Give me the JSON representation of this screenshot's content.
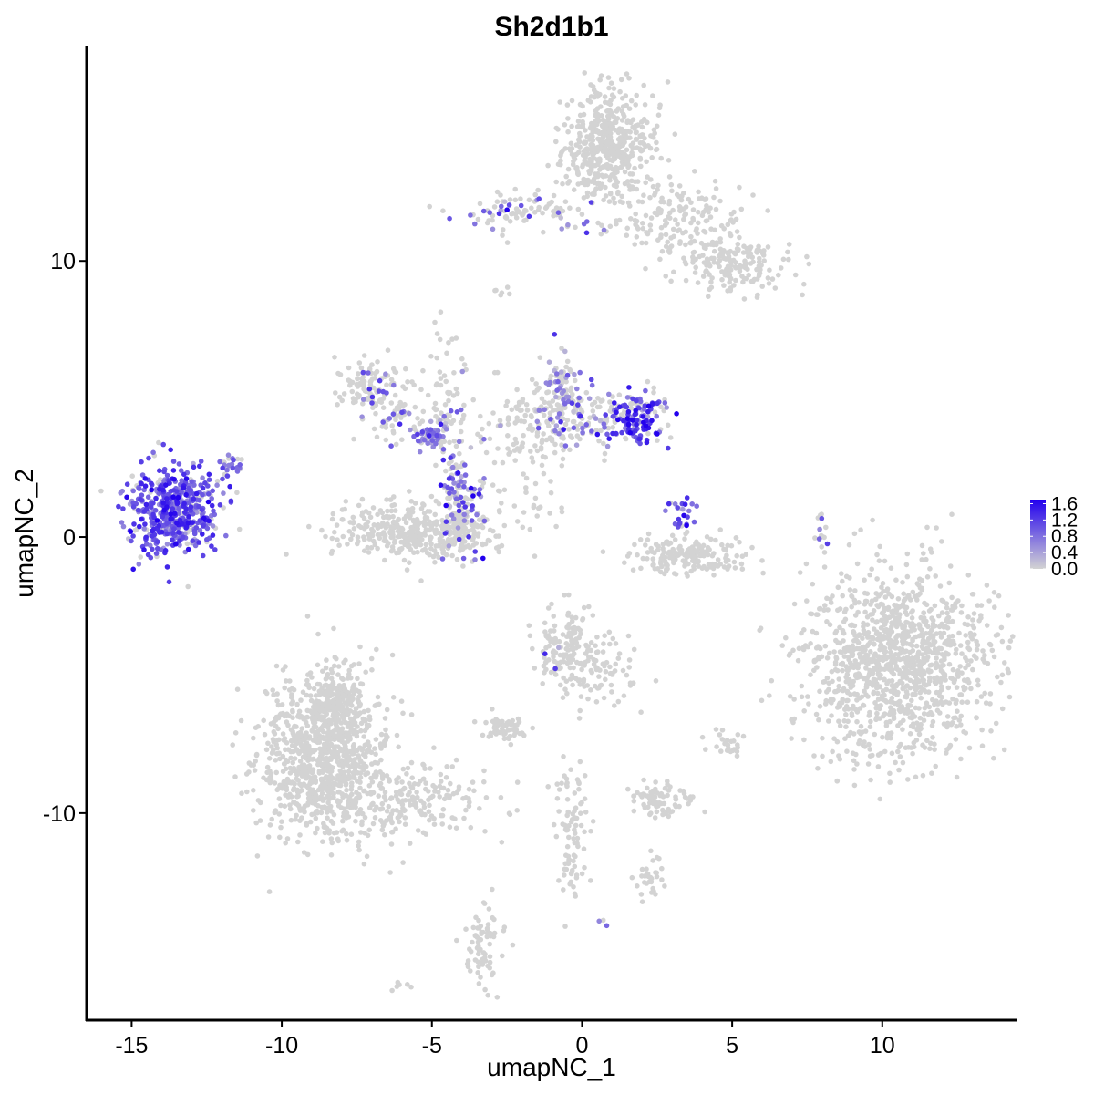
{
  "chart_data": {
    "type": "scatter",
    "title": "Sh2d1b1",
    "xlabel": "umapNC_1",
    "ylabel": "umapNC_2",
    "xlim": [
      -16.5,
      14.5
    ],
    "ylim": [
      -17.5,
      17.8
    ],
    "x_ticks": [
      -15,
      -10,
      -5,
      0,
      5,
      10
    ],
    "y_ticks": [
      -10,
      0,
      10
    ],
    "x_tick_labels": [
      "-15",
      "-10",
      "-5",
      "0",
      "5",
      "10"
    ],
    "y_tick_labels": [
      "-10",
      "0",
      "10"
    ],
    "colorscale": {
      "low_color": "#d3d3d3",
      "high_color": "#2200ee",
      "min": 0.0,
      "max": 1.7,
      "ticks": [
        0.0,
        0.4,
        0.8,
        1.2,
        1.6
      ],
      "tick_labels": [
        "0.0",
        "0.4",
        "0.8",
        "1.2",
        "1.6"
      ]
    },
    "clusters": [
      {
        "cx": -13.6,
        "cy": 1.0,
        "sx": 0.75,
        "sy": 0.8,
        "n": 520,
        "expr": 1.0,
        "p_expr": 0.85
      },
      {
        "cx": -11.8,
        "cy": 2.5,
        "sx": 0.25,
        "sy": 0.35,
        "n": 25,
        "expr": 0.8,
        "p_expr": 0.8
      },
      {
        "cx": 0.8,
        "cy": 14.2,
        "sx": 0.75,
        "sy": 1.0,
        "n": 520,
        "expr": 0.0,
        "p_expr": 0.0
      },
      {
        "cx": 3.0,
        "cy": 11.6,
        "sx": 1.2,
        "sy": 0.7,
        "n": 170,
        "expr": 0.0,
        "p_expr": 0.0
      },
      {
        "cx": 5.0,
        "cy": 9.8,
        "sx": 0.9,
        "sy": 0.55,
        "n": 170,
        "expr": 0.0,
        "p_expr": 0.0
      },
      {
        "cx": -2.0,
        "cy": 11.8,
        "sx": 1.0,
        "sy": 0.35,
        "n": 90,
        "expr": 0.9,
        "p_expr": 0.3
      },
      {
        "cx": -2.7,
        "cy": 8.8,
        "sx": 0.15,
        "sy": 0.15,
        "n": 6,
        "expr": 0.0,
        "p_expr": 0.0
      },
      {
        "cx": -7.0,
        "cy": 5.4,
        "sx": 0.6,
        "sy": 0.5,
        "n": 110,
        "expr": 0.9,
        "p_expr": 0.1
      },
      {
        "cx": -5.4,
        "cy": 4.2,
        "sx": 1.0,
        "sy": 0.5,
        "n": 80,
        "expr": 0.8,
        "p_expr": 0.3
      },
      {
        "cx": -5.0,
        "cy": 3.7,
        "sx": 0.3,
        "sy": 0.25,
        "n": 50,
        "expr": 0.6,
        "p_expr": 0.9
      },
      {
        "cx": -4.4,
        "cy": 5.5,
        "sx": 0.3,
        "sy": 1.5,
        "n": 40,
        "expr": 0.7,
        "p_expr": 0.2
      },
      {
        "cx": -4.3,
        "cy": 2.0,
        "sx": 0.25,
        "sy": 0.8,
        "n": 50,
        "expr": 0.8,
        "p_expr": 0.5
      },
      {
        "cx": -5.5,
        "cy": 0.2,
        "sx": 1.3,
        "sy": 0.5,
        "n": 380,
        "expr": 0.0,
        "p_expr": 0.0
      },
      {
        "cx": -3.9,
        "cy": 0.8,
        "sx": 0.4,
        "sy": 0.8,
        "n": 110,
        "expr": 1.0,
        "p_expr": 0.4
      },
      {
        "cx": -1.5,
        "cy": 4.0,
        "sx": 1.0,
        "sy": 0.8,
        "n": 150,
        "expr": 0.0,
        "p_expr": 0.0
      },
      {
        "cx": -0.7,
        "cy": 5.3,
        "sx": 0.4,
        "sy": 0.8,
        "n": 100,
        "expr": 0.7,
        "p_expr": 0.4
      },
      {
        "cx": 0.4,
        "cy": 4.3,
        "sx": 0.8,
        "sy": 0.5,
        "n": 70,
        "expr": 0.9,
        "p_expr": 0.3
      },
      {
        "cx": 1.9,
        "cy": 4.3,
        "sx": 0.5,
        "sy": 0.5,
        "n": 140,
        "expr": 1.2,
        "p_expr": 0.7
      },
      {
        "cx": -2.0,
        "cy": 1.2,
        "sx": 0.8,
        "sy": 0.4,
        "n": 20,
        "expr": 0.0,
        "p_expr": 0.0
      },
      {
        "cx": 3.3,
        "cy": 0.8,
        "sx": 0.25,
        "sy": 0.4,
        "n": 25,
        "expr": 1.1,
        "p_expr": 0.85
      },
      {
        "cx": 3.6,
        "cy": -0.7,
        "sx": 0.9,
        "sy": 0.35,
        "n": 190,
        "expr": 0.0,
        "p_expr": 0.0
      },
      {
        "cx": 8.0,
        "cy": 0.1,
        "sx": 0.15,
        "sy": 0.5,
        "n": 15,
        "expr": 0.8,
        "p_expr": 0.1
      },
      {
        "cx": 10.5,
        "cy": -4.5,
        "sx": 1.6,
        "sy": 1.7,
        "n": 1200,
        "expr": 0.0,
        "p_expr": 0.0
      },
      {
        "cx": -0.5,
        "cy": -4.0,
        "sx": 0.6,
        "sy": 0.7,
        "n": 150,
        "expr": 0.8,
        "p_expr": 0.02
      },
      {
        "cx": 0.7,
        "cy": -5.0,
        "sx": 0.6,
        "sy": 0.6,
        "n": 70,
        "expr": 0.0,
        "p_expr": 0.0
      },
      {
        "cx": -2.6,
        "cy": -6.9,
        "sx": 0.4,
        "sy": 0.25,
        "n": 60,
        "expr": 0.0,
        "p_expr": 0.0
      },
      {
        "cx": 2.6,
        "cy": -9.5,
        "sx": 0.5,
        "sy": 0.3,
        "n": 80,
        "expr": 0.0,
        "p_expr": 0.0
      },
      {
        "cx": 4.9,
        "cy": -7.5,
        "sx": 0.35,
        "sy": 0.25,
        "n": 25,
        "expr": 0.0,
        "p_expr": 0.0
      },
      {
        "cx": -0.3,
        "cy": -10.8,
        "sx": 0.3,
        "sy": 1.3,
        "n": 90,
        "expr": 0.0,
        "p_expr": 0.0
      },
      {
        "cx": 2.3,
        "cy": -12.4,
        "sx": 0.3,
        "sy": 0.4,
        "n": 30,
        "expr": 0.0,
        "p_expr": 0.0
      },
      {
        "cx": -3.4,
        "cy": -14.8,
        "sx": 0.3,
        "sy": 0.7,
        "n": 70,
        "expr": 0.0,
        "p_expr": 0.0
      },
      {
        "cx": -8.6,
        "cy": -8.0,
        "sx": 1.0,
        "sy": 1.5,
        "n": 950,
        "expr": 0.0,
        "p_expr": 0.0
      },
      {
        "cx": -8.2,
        "cy": -6.0,
        "sx": 0.5,
        "sy": 0.8,
        "n": 180,
        "expr": 0.0,
        "p_expr": 0.0
      },
      {
        "cx": -5.5,
        "cy": -9.5,
        "sx": 1.2,
        "sy": 0.6,
        "n": 170,
        "expr": 0.0,
        "p_expr": 0.0
      },
      {
        "cx": -6.0,
        "cy": -16.3,
        "sx": 0.15,
        "sy": 0.15,
        "n": 6,
        "expr": 0.0,
        "p_expr": 0.0
      },
      {
        "cx": 0.6,
        "cy": -14.0,
        "sx": 0.1,
        "sy": 0.1,
        "n": 3,
        "expr": 1.0,
        "p_expr": 0.67
      }
    ]
  }
}
